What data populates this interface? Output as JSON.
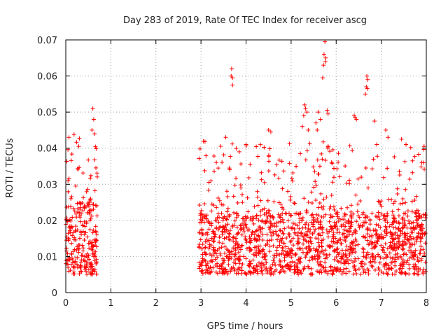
{
  "chart_data": {
    "type": "scatter",
    "title": "Day 283 of 2019, Rate Of TEC Index for receiver ascg",
    "xlabel": "GPS time / hours",
    "ylabel": "ROTI / TECUs",
    "xlim": [
      0,
      8
    ],
    "ylim": [
      0,
      0.07
    ],
    "xticks": [
      "0",
      "1",
      "2",
      "3",
      "4",
      "5",
      "6",
      "7",
      "8"
    ],
    "yticks": [
      "0",
      "0.01",
      "0.02",
      "0.03",
      "0.04",
      "0.05",
      "0.06",
      "0.07"
    ],
    "grid": true,
    "marker": "+",
    "color": "#ff0000",
    "series": [
      {
        "name": "ROTI",
        "clusters": [
          {
            "x_range": [
              0.0,
              0.7
            ],
            "y_base": [
              0.005,
              0.025
            ],
            "y_tail": [
              0.025,
              0.044
            ],
            "count": 260
          },
          {
            "x_range": [
              2.95,
              8.0
            ],
            "y_base": [
              0.005,
              0.022
            ],
            "y_tail": [
              0.022,
              0.042
            ],
            "count": 1600
          }
        ],
        "outliers": [
          [
            0.07,
            0.043
          ],
          [
            0.05,
            0.031
          ],
          [
            0.6,
            0.051
          ],
          [
            0.62,
            0.048
          ],
          [
            0.58,
            0.045
          ],
          [
            0.64,
            0.044
          ],
          [
            3.55,
            0.043
          ],
          [
            3.68,
            0.062
          ],
          [
            3.67,
            0.06
          ],
          [
            3.7,
            0.0595
          ],
          [
            3.7,
            0.0575
          ],
          [
            3.85,
            0.039
          ],
          [
            4.0,
            0.041
          ],
          [
            4.5,
            0.045
          ],
          [
            4.55,
            0.0445
          ],
          [
            5.3,
            0.052
          ],
          [
            5.32,
            0.051
          ],
          [
            5.28,
            0.049
          ],
          [
            5.35,
            0.05
          ],
          [
            5.25,
            0.046
          ],
          [
            5.38,
            0.045
          ],
          [
            5.6,
            0.05
          ],
          [
            5.65,
            0.048
          ],
          [
            5.55,
            0.047
          ],
          [
            5.58,
            0.045
          ],
          [
            5.75,
            0.0695
          ],
          [
            5.73,
            0.066
          ],
          [
            5.77,
            0.065
          ],
          [
            5.76,
            0.064
          ],
          [
            5.72,
            0.063
          ],
          [
            5.7,
            0.0595
          ],
          [
            5.8,
            0.0505
          ],
          [
            5.82,
            0.0495
          ],
          [
            6.4,
            0.049
          ],
          [
            6.42,
            0.0485
          ],
          [
            6.45,
            0.048
          ],
          [
            6.68,
            0.06
          ],
          [
            6.7,
            0.059
          ],
          [
            6.67,
            0.057
          ],
          [
            6.69,
            0.0565
          ],
          [
            6.65,
            0.055
          ],
          [
            6.85,
            0.0475
          ],
          [
            6.9,
            0.041
          ],
          [
            7.1,
            0.045
          ],
          [
            7.15,
            0.043
          ],
          [
            7.45,
            0.0425
          ],
          [
            7.55,
            0.041
          ],
          [
            7.95,
            0.0405
          ],
          [
            7.9,
            0.036
          ]
        ]
      }
    ]
  }
}
